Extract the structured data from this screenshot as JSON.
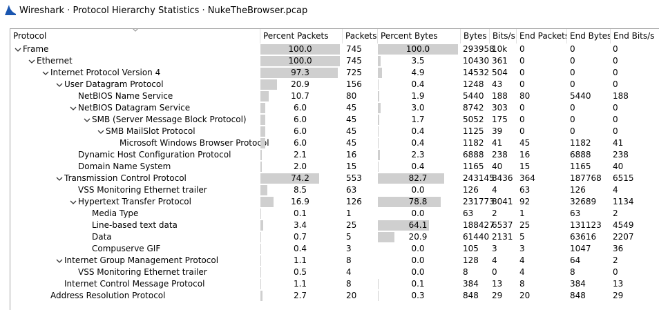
{
  "window": {
    "title": "Wireshark · Protocol Hierarchy Statistics · NukeTheBrowser.pcap",
    "app_icon": "wireshark-shark-fin-icon",
    "accent": "#1a56b0"
  },
  "table": {
    "columns": [
      "Protocol",
      "Percent Packets",
      "Packets",
      "Percent Bytes",
      "Bytes",
      "Bits/s",
      "End Packets",
      "End Bytes",
      "End Bits/s"
    ],
    "bar_color": "#cfcfcf",
    "rows": [
      {
        "depth": 0,
        "expanded": true,
        "name": "Frame",
        "pct_packets": "100.0",
        "pct_packets_val": 100.0,
        "packets": "745",
        "pct_bytes": "100.0",
        "pct_bytes_val": 100.0,
        "bytes": "293958",
        "bits": "10k",
        "end_packets": "0",
        "end_bytes": "0",
        "end_bits": "0"
      },
      {
        "depth": 1,
        "expanded": true,
        "name": "Ethernet",
        "pct_packets": "100.0",
        "pct_packets_val": 100.0,
        "packets": "745",
        "pct_bytes": "3.5",
        "pct_bytes_val": 3.5,
        "bytes": "10430",
        "bits": "361",
        "end_packets": "0",
        "end_bytes": "0",
        "end_bits": "0"
      },
      {
        "depth": 2,
        "expanded": true,
        "name": "Internet Protocol Version 4",
        "pct_packets": "97.3",
        "pct_packets_val": 97.3,
        "packets": "725",
        "pct_bytes": "4.9",
        "pct_bytes_val": 4.9,
        "bytes": "14532",
        "bits": "504",
        "end_packets": "0",
        "end_bytes": "0",
        "end_bits": "0"
      },
      {
        "depth": 3,
        "expanded": true,
        "name": "User Datagram Protocol",
        "pct_packets": "20.9",
        "pct_packets_val": 20.9,
        "packets": "156",
        "pct_bytes": "0.4",
        "pct_bytes_val": 0.4,
        "bytes": "1248",
        "bits": "43",
        "end_packets": "0",
        "end_bytes": "0",
        "end_bits": "0"
      },
      {
        "depth": 4,
        "expanded": null,
        "name": "NetBIOS Name Service",
        "pct_packets": "10.7",
        "pct_packets_val": 10.7,
        "packets": "80",
        "pct_bytes": "1.9",
        "pct_bytes_val": 1.9,
        "bytes": "5440",
        "bits": "188",
        "end_packets": "80",
        "end_bytes": "5440",
        "end_bits": "188"
      },
      {
        "depth": 4,
        "expanded": true,
        "name": "NetBIOS Datagram Service",
        "pct_packets": "6.0",
        "pct_packets_val": 6.0,
        "packets": "45",
        "pct_bytes": "3.0",
        "pct_bytes_val": 3.0,
        "bytes": "8742",
        "bits": "303",
        "end_packets": "0",
        "end_bytes": "0",
        "end_bits": "0"
      },
      {
        "depth": 5,
        "expanded": true,
        "name": "SMB (Server Message Block Protocol)",
        "pct_packets": "6.0",
        "pct_packets_val": 6.0,
        "packets": "45",
        "pct_bytes": "1.7",
        "pct_bytes_val": 1.7,
        "bytes": "5052",
        "bits": "175",
        "end_packets": "0",
        "end_bytes": "0",
        "end_bits": "0"
      },
      {
        "depth": 6,
        "expanded": true,
        "name": "SMB MailSlot Protocol",
        "pct_packets": "6.0",
        "pct_packets_val": 6.0,
        "packets": "45",
        "pct_bytes": "0.4",
        "pct_bytes_val": 0.4,
        "bytes": "1125",
        "bits": "39",
        "end_packets": "0",
        "end_bytes": "0",
        "end_bits": "0"
      },
      {
        "depth": 7,
        "expanded": null,
        "name": "Microsoft Windows Browser Protocol",
        "pct_packets": "6.0",
        "pct_packets_val": 6.0,
        "packets": "45",
        "pct_bytes": "0.4",
        "pct_bytes_val": 0.4,
        "bytes": "1182",
        "bits": "41",
        "end_packets": "45",
        "end_bytes": "1182",
        "end_bits": "41"
      },
      {
        "depth": 4,
        "expanded": null,
        "name": "Dynamic Host Configuration Protocol",
        "pct_packets": "2.1",
        "pct_packets_val": 2.1,
        "packets": "16",
        "pct_bytes": "2.3",
        "pct_bytes_val": 2.3,
        "bytes": "6888",
        "bits": "238",
        "end_packets": "16",
        "end_bytes": "6888",
        "end_bits": "238"
      },
      {
        "depth": 4,
        "expanded": null,
        "name": "Domain Name System",
        "pct_packets": "2.0",
        "pct_packets_val": 2.0,
        "packets": "15",
        "pct_bytes": "0.4",
        "pct_bytes_val": 0.4,
        "bytes": "1165",
        "bits": "40",
        "end_packets": "15",
        "end_bytes": "1165",
        "end_bits": "40"
      },
      {
        "depth": 3,
        "expanded": true,
        "name": "Transmission Control Protocol",
        "pct_packets": "74.2",
        "pct_packets_val": 74.2,
        "packets": "553",
        "pct_bytes": "82.7",
        "pct_bytes_val": 82.7,
        "bytes": "243145",
        "bits": "8436",
        "end_packets": "364",
        "end_bytes": "187768",
        "end_bits": "6515"
      },
      {
        "depth": 4,
        "expanded": null,
        "name": "VSS Monitoring Ethernet trailer",
        "pct_packets": "8.5",
        "pct_packets_val": 8.5,
        "packets": "63",
        "pct_bytes": "0.0",
        "pct_bytes_val": 0.0,
        "bytes": "126",
        "bits": "4",
        "end_packets": "63",
        "end_bytes": "126",
        "end_bits": "4"
      },
      {
        "depth": 4,
        "expanded": true,
        "name": "Hypertext Transfer Protocol",
        "pct_packets": "16.9",
        "pct_packets_val": 16.9,
        "packets": "126",
        "pct_bytes": "78.8",
        "pct_bytes_val": 78.8,
        "bytes": "231773",
        "bits": "8041",
        "end_packets": "92",
        "end_bytes": "32689",
        "end_bits": "1134"
      },
      {
        "depth": 5,
        "expanded": null,
        "name": "Media Type",
        "pct_packets": "0.1",
        "pct_packets_val": 0.1,
        "packets": "1",
        "pct_bytes": "0.0",
        "pct_bytes_val": 0.0,
        "bytes": "63",
        "bits": "2",
        "end_packets": "1",
        "end_bytes": "63",
        "end_bits": "2"
      },
      {
        "depth": 5,
        "expanded": null,
        "name": "Line-based text data",
        "pct_packets": "3.4",
        "pct_packets_val": 3.4,
        "packets": "25",
        "pct_bytes": "64.1",
        "pct_bytes_val": 64.1,
        "bytes": "188427",
        "bits": "6537",
        "end_packets": "25",
        "end_bytes": "131123",
        "end_bits": "4549"
      },
      {
        "depth": 5,
        "expanded": null,
        "name": "Data",
        "pct_packets": "0.7",
        "pct_packets_val": 0.7,
        "packets": "5",
        "pct_bytes": "20.9",
        "pct_bytes_val": 20.9,
        "bytes": "61440",
        "bits": "2131",
        "end_packets": "5",
        "end_bytes": "63616",
        "end_bits": "2207"
      },
      {
        "depth": 5,
        "expanded": null,
        "name": "Compuserve GIF",
        "pct_packets": "0.4",
        "pct_packets_val": 0.4,
        "packets": "3",
        "pct_bytes": "0.0",
        "pct_bytes_val": 0.0,
        "bytes": "105",
        "bits": "3",
        "end_packets": "3",
        "end_bytes": "1047",
        "end_bits": "36"
      },
      {
        "depth": 3,
        "expanded": true,
        "name": "Internet Group Management Protocol",
        "pct_packets": "1.1",
        "pct_packets_val": 1.1,
        "packets": "8",
        "pct_bytes": "0.0",
        "pct_bytes_val": 0.0,
        "bytes": "128",
        "bits": "4",
        "end_packets": "4",
        "end_bytes": "64",
        "end_bits": "2"
      },
      {
        "depth": 4,
        "expanded": null,
        "name": "VSS Monitoring Ethernet trailer",
        "pct_packets": "0.5",
        "pct_packets_val": 0.5,
        "packets": "4",
        "pct_bytes": "0.0",
        "pct_bytes_val": 0.0,
        "bytes": "8",
        "bits": "0",
        "end_packets": "4",
        "end_bytes": "8",
        "end_bits": "0"
      },
      {
        "depth": 3,
        "expanded": null,
        "name": "Internet Control Message Protocol",
        "pct_packets": "1.1",
        "pct_packets_val": 1.1,
        "packets": "8",
        "pct_bytes": "0.1",
        "pct_bytes_val": 0.1,
        "bytes": "384",
        "bits": "13",
        "end_packets": "8",
        "end_bytes": "384",
        "end_bits": "13"
      },
      {
        "depth": 2,
        "expanded": null,
        "name": "Address Resolution Protocol",
        "pct_packets": "2.7",
        "pct_packets_val": 2.7,
        "packets": "20",
        "pct_bytes": "0.3",
        "pct_bytes_val": 0.3,
        "bytes": "848",
        "bits": "29",
        "end_packets": "20",
        "end_bytes": "848",
        "end_bits": "29"
      }
    ]
  }
}
